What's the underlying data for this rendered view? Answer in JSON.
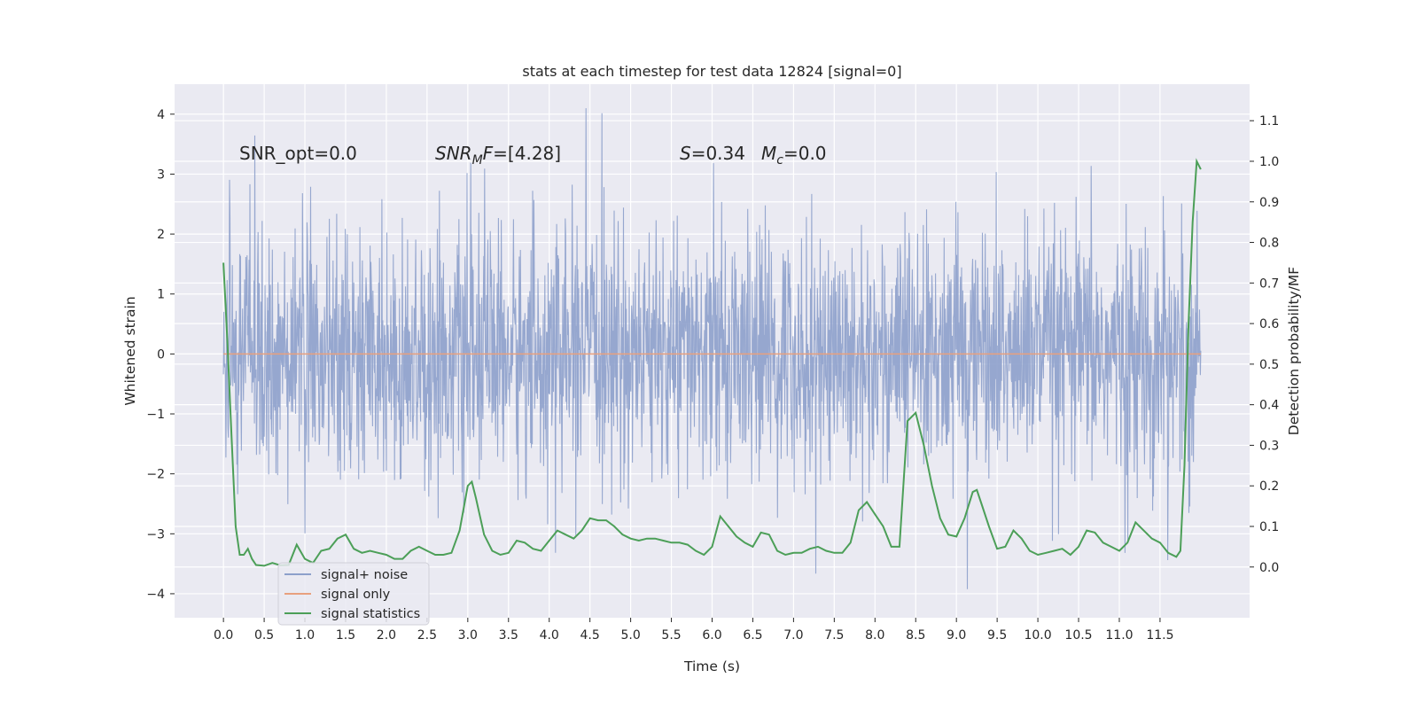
{
  "chart_data": {
    "type": "line",
    "title": "stats at each timestep for test data 12824 [signal=0]",
    "xlabel": "Time (s)",
    "ylabel": "Whitened strain",
    "y2label": "Detection probability/MF",
    "xlim": [
      -0.6,
      12.6
    ],
    "ylim": [
      -4.4,
      4.5
    ],
    "y2lim": [
      -0.125,
      1.19
    ],
    "x_ticks": [
      0.0,
      0.5,
      1.0,
      1.5,
      2.0,
      2.5,
      3.0,
      3.5,
      4.0,
      4.5,
      5.0,
      5.5,
      6.0,
      6.5,
      7.0,
      7.5,
      8.0,
      8.5,
      9.0,
      9.5,
      10.0,
      10.5,
      11.0,
      11.5
    ],
    "x_tick_labels": [
      "0.0",
      "0.5",
      "1.0",
      "1.5",
      "2.0",
      "2.5",
      "3.0",
      "3.5",
      "4.0",
      "4.5",
      "5.0",
      "5.5",
      "6.0",
      "6.5",
      "7.0",
      "7.5",
      "8.0",
      "8.5",
      "9.0",
      "9.5",
      "10.0",
      "10.5",
      "11.0",
      "11.5"
    ],
    "y_ticks": [
      -4,
      -3,
      -2,
      -1,
      0,
      1,
      2,
      3,
      4
    ],
    "y_tick_labels": [
      "−4",
      "−3",
      "−2",
      "−1",
      "0",
      "1",
      "2",
      "3",
      "4"
    ],
    "y2_ticks": [
      0.0,
      0.1,
      0.2,
      0.3,
      0.4,
      0.5,
      0.6,
      0.7,
      0.8,
      0.9,
      1.0,
      1.1
    ],
    "y2_tick_labels": [
      "0.0",
      "0.1",
      "0.2",
      "0.3",
      "0.4",
      "0.5",
      "0.6",
      "0.7",
      "0.8",
      "0.9",
      "1.0",
      "1.1"
    ],
    "grid": true,
    "legend_placement": "lower-left",
    "legend": [
      {
        "label": "signal+ noise",
        "color": "#8da0cb"
      },
      {
        "label": "signal only",
        "color": "#e8a07e"
      },
      {
        "label": "signal statistics",
        "color": "#4c9f58"
      }
    ],
    "annotations": [
      {
        "type": "plain",
        "text": "SNR_opt=0.0"
      },
      {
        "type": "snr_mf",
        "main": "SNR",
        "sub": "M",
        "tail": "F",
        "rest": "=[4.28]"
      },
      {
        "type": "s_mc",
        "s_name": "S",
        "s_rest": "=0.34",
        "mc_main": "M",
        "mc_sub": "c",
        "mc_rest": "=0.0"
      }
    ],
    "series": [
      {
        "name": "signal+ noise",
        "color": "#8da0cb",
        "description_x_range": [
          0.0,
          12.0
        ],
        "rendered_as": "dense noisy trace"
      },
      {
        "name": "signal only",
        "color": "#e8a07e",
        "x": [
          0.0,
          12.0
        ],
        "y": [
          0.0,
          0.0
        ]
      },
      {
        "name": "signal statistics",
        "color": "#4c9f58",
        "axis": "right",
        "x": [
          0.0,
          0.05,
          0.1,
          0.15,
          0.2,
          0.25,
          0.3,
          0.35,
          0.4,
          0.5,
          0.6,
          0.7,
          0.8,
          0.9,
          1.0,
          1.1,
          1.2,
          1.3,
          1.4,
          1.5,
          1.6,
          1.7,
          1.8,
          1.9,
          2.0,
          2.1,
          2.2,
          2.3,
          2.4,
          2.5,
          2.6,
          2.7,
          2.8,
          2.9,
          3.0,
          3.05,
          3.1,
          3.2,
          3.3,
          3.4,
          3.5,
          3.6,
          3.7,
          3.8,
          3.9,
          4.0,
          4.1,
          4.2,
          4.3,
          4.4,
          4.5,
          4.6,
          4.7,
          4.8,
          4.9,
          5.0,
          5.1,
          5.2,
          5.3,
          5.4,
          5.5,
          5.6,
          5.7,
          5.8,
          5.9,
          6.0,
          6.1,
          6.2,
          6.3,
          6.4,
          6.5,
          6.6,
          6.7,
          6.8,
          6.9,
          7.0,
          7.1,
          7.2,
          7.3,
          7.4,
          7.5,
          7.6,
          7.7,
          7.8,
          7.9,
          8.0,
          8.1,
          8.2,
          8.3,
          8.4,
          8.5,
          8.6,
          8.7,
          8.8,
          8.9,
          9.0,
          9.1,
          9.2,
          9.25,
          9.3,
          9.4,
          9.5,
          9.6,
          9.7,
          9.8,
          9.9,
          10.0,
          10.1,
          10.2,
          10.3,
          10.4,
          10.5,
          10.6,
          10.7,
          10.8,
          10.9,
          11.0,
          11.1,
          11.2,
          11.3,
          11.4,
          11.5,
          11.6,
          11.7,
          11.75,
          11.8,
          11.85,
          11.9,
          11.95,
          12.0
        ],
        "y": [
          0.75,
          0.55,
          0.32,
          0.1,
          0.03,
          0.03,
          0.045,
          0.02,
          0.005,
          0.003,
          0.01,
          0.004,
          0.005,
          0.055,
          0.02,
          0.01,
          0.04,
          0.045,
          0.07,
          0.08,
          0.045,
          0.035,
          0.04,
          0.035,
          0.03,
          0.02,
          0.02,
          0.04,
          0.05,
          0.04,
          0.03,
          0.03,
          0.035,
          0.09,
          0.2,
          0.21,
          0.17,
          0.08,
          0.04,
          0.03,
          0.035,
          0.065,
          0.06,
          0.045,
          0.04,
          0.065,
          0.09,
          0.08,
          0.07,
          0.09,
          0.12,
          0.115,
          0.115,
          0.1,
          0.08,
          0.07,
          0.065,
          0.07,
          0.07,
          0.065,
          0.06,
          0.06,
          0.055,
          0.04,
          0.03,
          0.05,
          0.125,
          0.1,
          0.075,
          0.06,
          0.05,
          0.085,
          0.08,
          0.04,
          0.03,
          0.035,
          0.035,
          0.045,
          0.05,
          0.04,
          0.035,
          0.035,
          0.06,
          0.14,
          0.16,
          0.13,
          0.1,
          0.05,
          0.05,
          0.36,
          0.38,
          0.3,
          0.2,
          0.12,
          0.08,
          0.075,
          0.12,
          0.185,
          0.19,
          0.16,
          0.1,
          0.045,
          0.05,
          0.09,
          0.07,
          0.04,
          0.03,
          0.035,
          0.04,
          0.045,
          0.03,
          0.05,
          0.09,
          0.085,
          0.06,
          0.05,
          0.04,
          0.06,
          0.11,
          0.09,
          0.07,
          0.06,
          0.035,
          0.025,
          0.04,
          0.25,
          0.6,
          0.85,
          1.0,
          0.98
        ]
      }
    ]
  }
}
